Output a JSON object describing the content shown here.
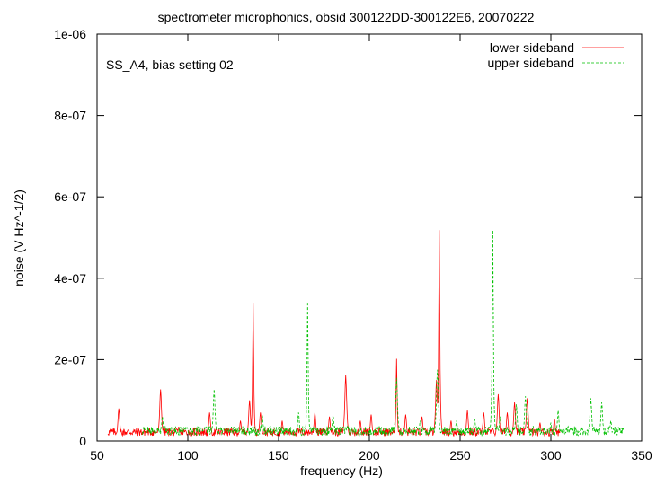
{
  "chart_data": {
    "type": "line",
    "title": "spectrometer microphonics, obsid 300122DD-300122E6, 20070222",
    "annotation": "SS_A4, bias setting 02",
    "xlabel": "frequency (Hz)",
    "ylabel": "noise (V Hz^-1/2)",
    "xlim": [
      50,
      350
    ],
    "ylim": [
      0,
      1e-06
    ],
    "x_ticks": [
      50,
      100,
      150,
      200,
      250,
      300,
      350
    ],
    "x_tick_labels": [
      "50",
      "100",
      "150",
      "200",
      "250",
      "300",
      "350"
    ],
    "y_ticks": [
      0,
      2e-07,
      4e-07,
      6e-07,
      8e-07,
      1e-06
    ],
    "y_tick_labels": [
      "0",
      "2e-07",
      "4e-07",
      "6e-07",
      "8e-07",
      "1e-06"
    ],
    "grid": false,
    "legend_position": "top-right",
    "series": [
      {
        "name": "lower sideband",
        "color": "#ff0000",
        "style": "solid",
        "x_range": [
          56,
          305
        ],
        "baseline": 2.2e-08,
        "peaks": [
          {
            "x": 62,
            "y": 8e-08
          },
          {
            "x": 85,
            "y": 1.27e-07
          },
          {
            "x": 95,
            "y": 3.5e-08
          },
          {
            "x": 112,
            "y": 7e-08
          },
          {
            "x": 129,
            "y": 5e-08
          },
          {
            "x": 134,
            "y": 1e-07
          },
          {
            "x": 136,
            "y": 3.4e-07
          },
          {
            "x": 140,
            "y": 7e-08
          },
          {
            "x": 152,
            "y": 5e-08
          },
          {
            "x": 170,
            "y": 7e-08
          },
          {
            "x": 178,
            "y": 6e-08
          },
          {
            "x": 187,
            "y": 1.62e-07
          },
          {
            "x": 195,
            "y": 5e-08
          },
          {
            "x": 201,
            "y": 6.5e-08
          },
          {
            "x": 215,
            "y": 2.02e-07
          },
          {
            "x": 220,
            "y": 6.5e-08
          },
          {
            "x": 229,
            "y": 6e-08
          },
          {
            "x": 237,
            "y": 1.5e-07
          },
          {
            "x": 238.5,
            "y": 5.18e-07
          },
          {
            "x": 245,
            "y": 5e-08
          },
          {
            "x": 254,
            "y": 7.5e-08
          },
          {
            "x": 263,
            "y": 7e-08
          },
          {
            "x": 271,
            "y": 1.15e-07
          },
          {
            "x": 276,
            "y": 7e-08
          },
          {
            "x": 280,
            "y": 9.5e-08
          },
          {
            "x": 287,
            "y": 1.05e-07
          },
          {
            "x": 294,
            "y": 4.5e-08
          },
          {
            "x": 302,
            "y": 5.5e-08
          }
        ]
      },
      {
        "name": "upper sideband",
        "color": "#00c000",
        "style": "dashed",
        "x_range": [
          75,
          340
        ],
        "baseline": 2.5e-08,
        "peaks": [
          {
            "x": 86,
            "y": 6e-08
          },
          {
            "x": 99,
            "y": 3.5e-08
          },
          {
            "x": 114.5,
            "y": 1.27e-07
          },
          {
            "x": 124,
            "y": 3.5e-08
          },
          {
            "x": 141,
            "y": 6.5e-08
          },
          {
            "x": 161,
            "y": 7e-08
          },
          {
            "x": 166,
            "y": 3.42e-07
          },
          {
            "x": 180,
            "y": 6.5e-08
          },
          {
            "x": 205,
            "y": 3.5e-08
          },
          {
            "x": 215,
            "y": 1.55e-07
          },
          {
            "x": 228,
            "y": 5e-08
          },
          {
            "x": 237.5,
            "y": 1.75e-07
          },
          {
            "x": 248,
            "y": 5e-08
          },
          {
            "x": 258,
            "y": 5.5e-08
          },
          {
            "x": 268,
            "y": 5.18e-07
          },
          {
            "x": 272,
            "y": 6e-08
          },
          {
            "x": 281,
            "y": 9e-08
          },
          {
            "x": 286,
            "y": 1.1e-07
          },
          {
            "x": 300,
            "y": 4.5e-08
          },
          {
            "x": 304,
            "y": 7.5e-08
          },
          {
            "x": 322,
            "y": 1.05e-07
          },
          {
            "x": 328,
            "y": 9.5e-08
          },
          {
            "x": 333,
            "y": 5e-08
          }
        ]
      }
    ]
  }
}
